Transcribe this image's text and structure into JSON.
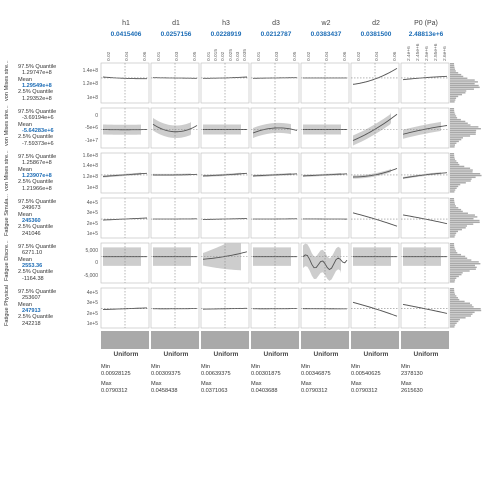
{
  "factors": [
    {
      "name": "h1",
      "current": "0.0415406",
      "ticks": [
        "0.02",
        "0.04",
        "0.06"
      ],
      "dist": "Uniform",
      "min": "0.00928125",
      "max": "0.0790312"
    },
    {
      "name": "d1",
      "current": "0.0257156",
      "ticks": [
        "0.01",
        "0.03",
        "0.05"
      ],
      "dist": "Uniform",
      "min": "0.00309375",
      "max": "0.0458438"
    },
    {
      "name": "h3",
      "current": "0.0228919",
      "ticks": [
        "0.01",
        "0.015",
        "0.02",
        "0.025",
        "0.03",
        "0.035"
      ],
      "dist": "Uniform",
      "min": "0.00639375",
      "max": "0.0371063"
    },
    {
      "name": "d3",
      "current": "0.0212787",
      "ticks": [
        "0.01",
        "0.03",
        "0.05"
      ],
      "dist": "Uniform",
      "min": "0.00301875",
      "max": "0.0403688"
    },
    {
      "name": "w2",
      "current": "0.0383437",
      "ticks": [
        "0.02",
        "0.04",
        "0.06"
      ],
      "dist": "Uniform",
      "min": "0.00346875",
      "max": "0.0790312"
    },
    {
      "name": "d2",
      "current": "0.0381500",
      "ticks": [
        "0.02",
        "0.04",
        "0.06"
      ],
      "dist": "Uniform",
      "min": "0.00540625",
      "max": "0.0790312"
    },
    {
      "name": "P0 (Pa)",
      "current": "2.48813e+6",
      "ticks": [
        "2.4e+6",
        "2.45e+6",
        "2.5e+6",
        "2.55e+6",
        "2.6e+6"
      ],
      "dist": "Uniform",
      "min": "2378130",
      "max": "2615630"
    }
  ],
  "labels": {
    "min": "Min",
    "max": "Max",
    "q975": "97.5% Quantile",
    "mean": "Mean",
    "q025": "2.5% Quantile"
  },
  "responses": [
    {
      "title": "von Mises stre...",
      "q975": "1.29747e+8",
      "mean": "1.29549e+8",
      "q025": "1.29352e+8",
      "yticks": [
        "1.4e+8",
        "1.2e+8",
        "1e+8"
      ],
      "ylim": [
        92000000.0,
        152000000.0
      ],
      "ref": 129550000.0,
      "curves": [
        [
          1.31,
          1.29,
          1.285
        ],
        [
          1.3,
          1.295,
          1.29
        ],
        [
          1.29,
          1.296,
          1.31
        ],
        [
          1.29,
          1.296,
          1.3
        ],
        [
          1.296,
          1.296,
          1.296
        ],
        [
          1.2,
          1.28,
          1.44
        ],
        [
          1.27,
          1.3,
          1.32
        ]
      ],
      "scale": 100000000.0,
      "band": [
        0.004,
        0.004,
        0.004,
        0.004,
        0.004,
        0.008,
        0.006
      ]
    },
    {
      "title": "von Mises stre...",
      "q975": "-3.69194e+6",
      "mean": "-5.64283e+6",
      "q025": "-7.59373e+6",
      "yticks": [
        "0",
        "-5e+6",
        "-1e+7"
      ],
      "ylim": [
        -13000000.0,
        3000000.0
      ],
      "ref": -5600000.0,
      "curves": [
        [
          -5.6,
          -5.7,
          -5.6
        ],
        [
          -3.5,
          -6.5,
          -4.0
        ],
        [
          -5.6,
          -5.6,
          -5.6
        ],
        [
          -7.0,
          -5.0,
          -6.0
        ],
        [
          -5.6,
          -5.6,
          -5.6
        ],
        [
          -10,
          -5.5,
          0.5
        ],
        [
          -7.5,
          -5.5,
          -4.0
        ]
      ],
      "scale": 1000000.0,
      "band": [
        2.0,
        2.5,
        2.0,
        2.0,
        2.0,
        2.0,
        1.8
      ]
    },
    {
      "title": "von Mises stre...",
      "q975": "1.25867e+8",
      "mean": "1.23907e+8",
      "q025": "1.21966e+8",
      "yticks": [
        "1.6e+8",
        "1.4e+8",
        "1.2e+8",
        "1e+8"
      ],
      "ylim": [
        90000000.0,
        165000000.0
      ],
      "ref": 123900000.0,
      "curves": [
        [
          1.21,
          1.24,
          1.27
        ],
        [
          1.24,
          1.24,
          1.25
        ],
        [
          1.22,
          1.24,
          1.27
        ],
        [
          1.22,
          1.24,
          1.26
        ],
        [
          1.22,
          1.24,
          1.26
        ],
        [
          1.2,
          1.24,
          1.36
        ],
        [
          1.18,
          1.24,
          1.28
        ]
      ],
      "scale": 100000000.0,
      "band": [
        0.02,
        0.02,
        0.02,
        0.02,
        0.02,
        0.03,
        0.02
      ]
    },
    {
      "title": "Fatigue Simula...",
      "q975": "249673",
      "mean": "245360",
      "q025": "241046",
      "yticks": [
        "4e+5",
        "3e+5",
        "2e+5",
        "1e+5"
      ],
      "ylim": [
        60000.0,
        450000.0
      ],
      "ref": 245000.0,
      "curves": [
        [
          2.35,
          2.45,
          2.55
        ],
        [
          2.45,
          2.45,
          2.47
        ],
        [
          2.4,
          2.45,
          2.5
        ],
        [
          2.45,
          2.45,
          2.48
        ],
        [
          2.46,
          2.45,
          2.44
        ],
        [
          3.05,
          2.45,
          1.75
        ],
        [
          2.85,
          2.45,
          2.0
        ]
      ],
      "scale": 100000.0,
      "band": [
        0.04,
        0.04,
        0.04,
        0.04,
        0.04,
        0.04,
        0.04
      ]
    },
    {
      "title": "Fatigue Discre...",
      "q975": "6271.10",
      "mean": "2553.36",
      "q025": "-1164.38",
      "yticks": [
        "5,000",
        "0",
        "-5,000"
      ],
      "ylim": [
        -8000,
        8000
      ],
      "ref": 2553,
      "curves": [
        [
          2.55,
          2.55,
          2.55
        ],
        [
          2.55,
          2.55,
          2.55
        ],
        [
          1.5,
          2.6,
          4.5
        ],
        [
          2.55,
          2.55,
          2.55
        ],
        [
          2.5,
          -1.0,
          2.5
        ],
        [
          2.55,
          2.55,
          2.55
        ],
        [
          2.55,
          2.55,
          2.55
        ]
      ],
      "scale": 1000,
      "band": [
        3.7,
        3.7,
        5.0,
        3.7,
        4.5,
        3.7,
        3.7
      ]
    },
    {
      "title": "Fatigue Physical",
      "q975": "253607",
      "mean": "247913",
      "q025": "242218",
      "yticks": [
        "4e+5",
        "3e+5",
        "2e+5",
        "1e+5"
      ],
      "ylim": [
        60000.0,
        450000.0
      ],
      "ref": 247900.0,
      "curves": [
        [
          2.4,
          2.48,
          2.56
        ],
        [
          2.48,
          2.48,
          2.5
        ],
        [
          2.44,
          2.48,
          2.52
        ],
        [
          2.48,
          2.48,
          2.5
        ],
        [
          2.49,
          2.48,
          2.47
        ],
        [
          3.1,
          2.48,
          1.75
        ],
        [
          2.9,
          2.48,
          2.02
        ]
      ],
      "scale": 100000.0,
      "band": [
        0.05,
        0.05,
        0.05,
        0.05,
        0.05,
        0.05,
        0.05
      ]
    }
  ],
  "colors": {
    "accent": "#1a6bb5",
    "curve": "#555555",
    "band": "#c8c8c8",
    "hist": "#a9a9a9"
  }
}
